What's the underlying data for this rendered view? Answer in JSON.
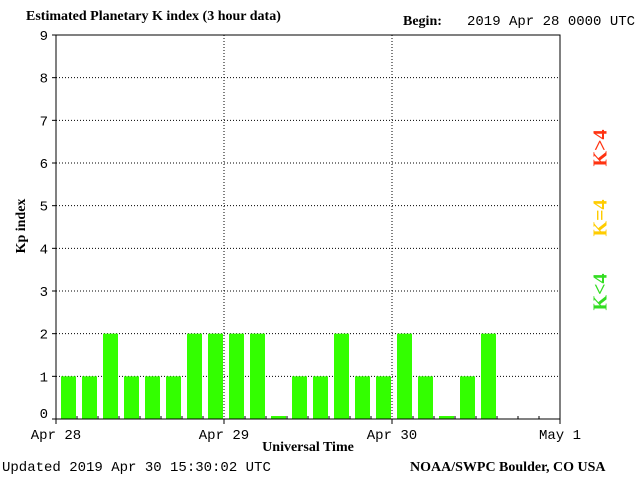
{
  "header": {
    "title": "Estimated Planetary K index (3 hour data)",
    "begin_label": "Begin:",
    "begin_value": "2019 Apr 28 0000 UTC"
  },
  "footer": {
    "updated": "Updated 2019 Apr 30 15:30:02 UTC",
    "credit": "NOAA/SWPC Boulder, CO USA"
  },
  "legend": {
    "high": "K>4",
    "equal": "K=4",
    "low": "K<4",
    "colors": {
      "high": "#ff3311",
      "equal": "#ffcc00",
      "low": "#33ff00"
    }
  },
  "chart_data": {
    "type": "bar",
    "ylabel": "Kp index",
    "xlabel": "Universal Time",
    "ylim": [
      0,
      9
    ],
    "yticks": [
      "0",
      "1",
      "2",
      "3",
      "4",
      "5",
      "6",
      "7",
      "8",
      "9"
    ],
    "xticks": [
      "Apr 28",
      "Apr 29",
      "Apr 30",
      "May 1"
    ],
    "grid": true,
    "bar_color": "#33ff00",
    "interval_hours": 3,
    "values": [
      1,
      1,
      2,
      1,
      1,
      1,
      2,
      2,
      2,
      2,
      0.07,
      1,
      1,
      2,
      1,
      1,
      2,
      1,
      0.07,
      1,
      2
    ]
  }
}
